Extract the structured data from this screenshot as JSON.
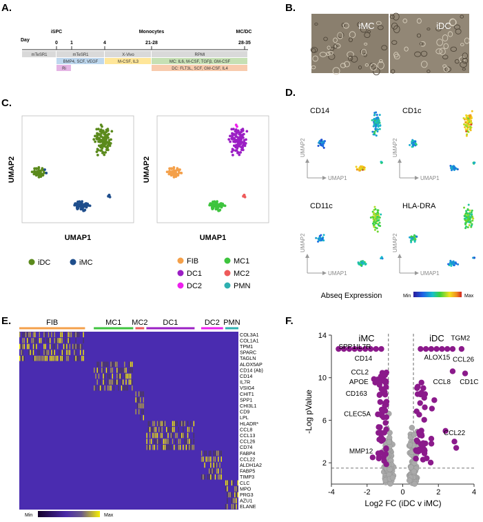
{
  "panel_a": {
    "label": "A.",
    "day_label": "Day",
    "ticks": [
      {
        "text": "0",
        "day": 0
      },
      {
        "text": "1",
        "day": 1
      },
      {
        "text": "4",
        "day": 4
      },
      {
        "text": "21-28",
        "day": 21
      },
      {
        "text": "28-35",
        "day": 30
      }
    ],
    "headers": [
      {
        "text": "iSPC",
        "day": 0
      },
      {
        "text": "Monocytes",
        "day": 21
      },
      {
        "text": "MC/DC",
        "day": 30
      }
    ],
    "bars": [
      {
        "text": "mTeSR1",
        "start": -2.5,
        "end": 0,
        "row": 0,
        "color": "#d9d9d9"
      },
      {
        "text": "mTeSR1",
        "start": 0,
        "end": 4,
        "row": 0,
        "color": "#d9d9d9"
      },
      {
        "text": "BMP4, SCF, VEGF",
        "start": 0,
        "end": 4,
        "row": 1,
        "color": "#bdd7ee"
      },
      {
        "text": "Ri",
        "start": 0,
        "end": 1,
        "row": 2,
        "color": "#e4b4e4"
      },
      {
        "text": "X-Vivo",
        "start": 4,
        "end": 21,
        "row": 0,
        "color": "#d9d9d9"
      },
      {
        "text": "M-CSF, IL3",
        "start": 4,
        "end": 21,
        "row": 1,
        "color": "#ffe699"
      },
      {
        "text": "RPMI",
        "start": 21,
        "end": 37,
        "row": 0,
        "color": "#d9d9d9"
      },
      {
        "text": "MC: IL6, M-CSF, TGFβ, GM-CSF",
        "start": 21,
        "end": 37,
        "row": 1,
        "color": "#c6e0b4"
      },
      {
        "text": "DC: FLT3L, SCF, GM-CSF, IL4",
        "start": 21,
        "end": 37,
        "row": 2,
        "color": "#f8cbad"
      }
    ]
  },
  "panel_b": {
    "label": "B.",
    "left_label": "iMC",
    "right_label": "iDC"
  },
  "panel_c": {
    "label": "C.",
    "xlabel": "UMAP1",
    "ylabel": "UMAP2",
    "legend_left": [
      {
        "name": "iDC",
        "color": "#5b8a1c"
      },
      {
        "name": "iMC",
        "color": "#1f4e8c"
      }
    ],
    "legend_right": [
      {
        "name": "FIB",
        "color": "#f4a04a"
      },
      {
        "name": "MC1",
        "color": "#3ec43e"
      },
      {
        "name": "DC1",
        "color": "#9b1fc4"
      },
      {
        "name": "MC2",
        "color": "#ee5a5a"
      },
      {
        "name": "DC2",
        "color": "#ee1fee"
      },
      {
        "name": "PMN",
        "color": "#2eb0b0"
      }
    ]
  },
  "panel_d": {
    "label": "D.",
    "markers": [
      "CD14",
      "CD1c",
      "CD11c",
      "HLA-DRA"
    ],
    "xlabel": "UMAP1",
    "ylabel": "UMAP2",
    "title": "Abseq Expression",
    "scale_min": "Min",
    "scale_max": "Max"
  },
  "panel_e": {
    "label": "E.",
    "clusters": [
      {
        "name": "FIB",
        "color": "#f4a04a",
        "frac_start": 0.0,
        "frac_end": 0.3
      },
      {
        "name": "MC1",
        "color": "#3ec43e",
        "frac_start": 0.34,
        "frac_end": 0.52
      },
      {
        "name": "MC2",
        "color": "#ee5a5a",
        "frac_start": 0.53,
        "frac_end": 0.57
      },
      {
        "name": "DC1",
        "color": "#9b1fc4",
        "frac_start": 0.58,
        "frac_end": 0.8
      },
      {
        "name": "DC2",
        "color": "#ee1fee",
        "frac_start": 0.83,
        "frac_end": 0.93
      },
      {
        "name": "PMN",
        "color": "#2eb0b0",
        "frac_start": 0.94,
        "frac_end": 1.0
      }
    ],
    "genes": [
      "COL3A1",
      "COL1A1",
      "TPM1",
      "SPARC",
      "TAGLN",
      "ALOX5AP",
      "CD14 (Ab)",
      "CD14",
      "IL7R",
      "VSIG4",
      "CHIT1",
      "SPP1",
      "CHI3L1",
      "CD9",
      "LPL",
      "HLADR*",
      "CCL8",
      "CCL13",
      "CCL26",
      "CD74",
      "FABP4",
      "CCL22",
      "ALDH1A2",
      "FABP5",
      "TIMP3",
      "CLC",
      "MPO",
      "PRG3",
      "AZU1",
      "ELANE"
    ],
    "scale_min": "Min",
    "scale_max": "Max"
  },
  "panel_f": {
    "label": "F.",
    "left_title": "iMC",
    "right_title": "iDC",
    "xlabel": "Log2 FC (iDC v iMC)",
    "ylabel": "-Log pValue",
    "xticks": [
      -4,
      -2,
      0,
      2,
      4
    ],
    "yticks": [
      2,
      6,
      10,
      14
    ],
    "xlim": [
      -4,
      4
    ],
    "ylim": [
      0,
      14
    ],
    "threshold_x": [
      -0.8,
      0.6
    ],
    "threshold_y": 1.5,
    "gene_labels": [
      {
        "text": "SPP1",
        "x": -3.6,
        "y": 12.7
      },
      {
        "text": "IL7R",
        "x": -2.6,
        "y": 12.7
      },
      {
        "text": "CD14",
        "x": -2.7,
        "y": 11.6
      },
      {
        "text": "CCL2",
        "x": -2.9,
        "y": 10.3
      },
      {
        "text": "APOE",
        "x": -3.0,
        "y": 9.4
      },
      {
        "text": "CD163",
        "x": -3.2,
        "y": 8.3
      },
      {
        "text": "CLEC5A",
        "x": -3.3,
        "y": 6.4
      },
      {
        "text": "MMP12",
        "x": -3.0,
        "y": 2.9
      },
      {
        "text": "TGM2",
        "x": 2.7,
        "y": 13.5
      },
      {
        "text": "ALOX15",
        "x": 1.2,
        "y": 11.7
      },
      {
        "text": "CCL26",
        "x": 2.8,
        "y": 11.5
      },
      {
        "text": "CCL8",
        "x": 1.7,
        "y": 9.4
      },
      {
        "text": "CD1C",
        "x": 3.2,
        "y": 9.4
      },
      {
        "text": "CCL22",
        "x": 2.3,
        "y": 4.6
      }
    ]
  }
}
